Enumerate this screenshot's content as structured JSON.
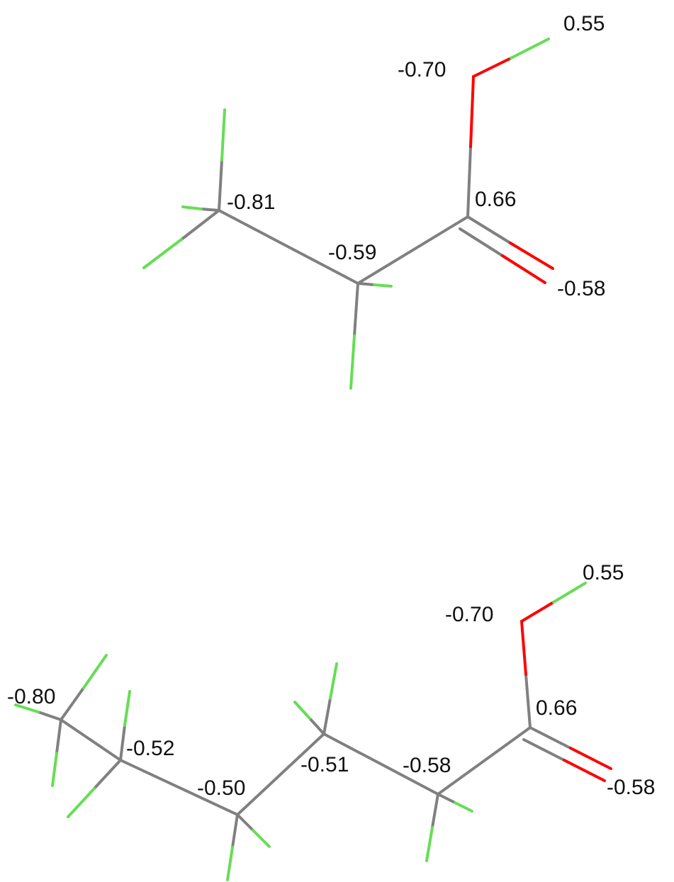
{
  "colors": {
    "carbon": "#808080",
    "oxygen": "#ff0000",
    "hydrogen": "#66dd55"
  },
  "molecules": [
    {
      "id": "propanoic-acid",
      "labels": {
        "o_hydroxyl": "-0.70",
        "h_hydroxyl": "0.55",
        "c_methyl": "-0.81",
        "c_methylene": "-0.59",
        "c_carboxyl": "0.66",
        "o_carbonyl": "-0.58"
      }
    },
    {
      "id": "hexanoic-acid",
      "labels": {
        "c_methyl": "-0.80",
        "c2": "-0.52",
        "c3": "-0.50",
        "c4": "-0.51",
        "c5": "-0.58",
        "c_carboxyl": "0.66",
        "o_hydroxyl": "-0.70",
        "h_hydroxyl": "0.55",
        "o_carbonyl": "-0.58"
      }
    }
  ]
}
